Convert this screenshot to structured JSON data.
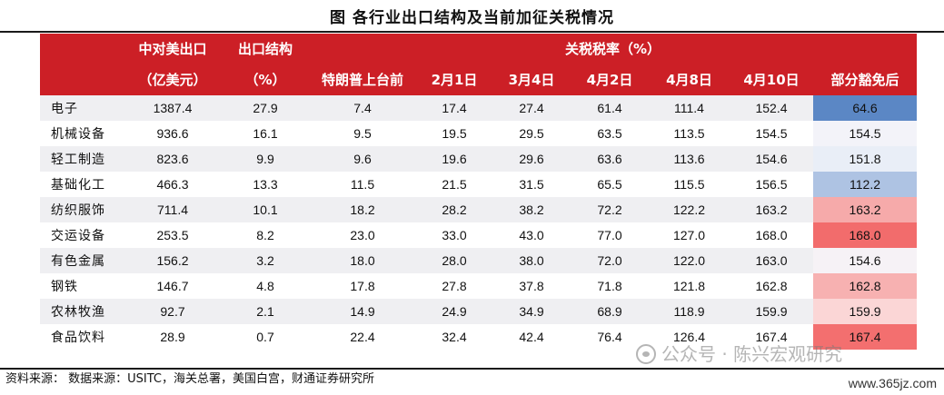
{
  "title": "图    各行业出口结构及当前加征关税情况",
  "header": {
    "col_export_value_line1": "中对美出口",
    "col_export_value_line2": "（亿美元）",
    "col_share_line1": "出口结构",
    "col_share_line2": "（%）",
    "tariff_group": "关税税率（%）",
    "tariff_cols": [
      "特朗普上台前",
      "2月1日",
      "3月4日",
      "4月2日",
      "4月8日",
      "4月10日",
      "部分豁免后"
    ]
  },
  "rows": [
    {
      "name": "电子",
      "export": "1387.4",
      "share": "27.9",
      "t": [
        "7.4",
        "17.4",
        "27.4",
        "61.4",
        "111.4",
        "152.4",
        "64.6"
      ],
      "exempt_color": "#5b87c5"
    },
    {
      "name": "机械设备",
      "export": "936.6",
      "share": "16.1",
      "t": [
        "9.5",
        "19.5",
        "29.5",
        "63.5",
        "113.5",
        "154.5",
        "154.5"
      ],
      "exempt_color": "#f3f3f9"
    },
    {
      "name": "轻工制造",
      "export": "823.6",
      "share": "9.9",
      "t": [
        "9.6",
        "19.6",
        "29.6",
        "63.6",
        "113.6",
        "154.6",
        "151.8"
      ],
      "exempt_color": "#e9eef7"
    },
    {
      "name": "基础化工",
      "export": "466.3",
      "share": "13.3",
      "t": [
        "11.5",
        "21.5",
        "31.5",
        "65.5",
        "115.5",
        "156.5",
        "112.2"
      ],
      "exempt_color": "#aec3e3"
    },
    {
      "name": "纺织服饰",
      "export": "711.4",
      "share": "10.1",
      "t": [
        "18.2",
        "28.2",
        "38.2",
        "72.2",
        "122.2",
        "163.2",
        "163.2"
      ],
      "exempt_color": "#f6aaaa"
    },
    {
      "name": "交运设备",
      "export": "253.5",
      "share": "8.2",
      "t": [
        "23.0",
        "33.0",
        "43.0",
        "77.0",
        "127.0",
        "168.0",
        "168.0"
      ],
      "exempt_color": "#f26c6c"
    },
    {
      "name": "有色金属",
      "export": "156.2",
      "share": "3.2",
      "t": [
        "18.0",
        "28.0",
        "38.0",
        "72.0",
        "122.0",
        "163.0",
        "154.6"
      ],
      "exempt_color": "#f6f2f6"
    },
    {
      "name": "钢铁",
      "export": "146.7",
      "share": "4.8",
      "t": [
        "17.8",
        "27.8",
        "37.8",
        "71.8",
        "121.8",
        "162.8",
        "162.8"
      ],
      "exempt_color": "#f7b1b1"
    },
    {
      "name": "农林牧渔",
      "export": "92.7",
      "share": "2.1",
      "t": [
        "14.9",
        "24.9",
        "34.9",
        "68.9",
        "118.9",
        "159.9",
        "159.9"
      ],
      "exempt_color": "#fbd6d6"
    },
    {
      "name": "食品饮料",
      "export": "28.9",
      "share": "0.7",
      "t": [
        "22.4",
        "32.4",
        "42.4",
        "76.4",
        "126.4",
        "167.4",
        "167.4"
      ],
      "exempt_color": "#f36f6f"
    }
  ],
  "source": "资料来源：  数据来源：USITC，海关总署，美国白宫，财通证券研究所",
  "watermark": "公众号 · 陈兴宏观研究",
  "site": "www.365jz.com",
  "colors": {
    "header_bg": "#cc1f26",
    "stripe": "#efeff2"
  }
}
